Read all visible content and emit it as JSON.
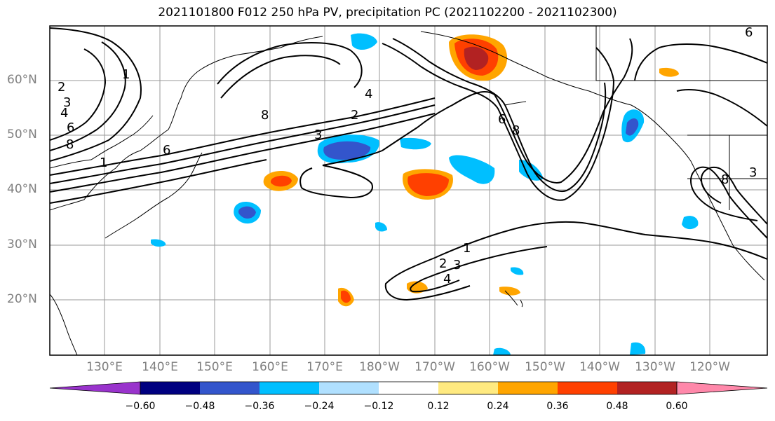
{
  "title": "2021101800 F012 250 hPa PV, precipitation PC (2021102200 - 2021102300)",
  "lat_labels": [
    "60°N",
    "50°N",
    "40°N",
    "30°N",
    "20°N"
  ],
  "lon_labels": [
    "130°E",
    "140°E",
    "150°E",
    "160°E",
    "170°E",
    "180°W",
    "170°W",
    "160°W",
    "150°W",
    "140°W",
    "130°W",
    "120°W"
  ],
  "colorbar": {
    "colors": [
      "#9933cc",
      "#000080",
      "#3355cc",
      "#00bfff",
      "#b0e0ff",
      "#ffffff",
      "#ffea80",
      "#ffa500",
      "#ff4000",
      "#b22222",
      "#ff88aa"
    ],
    "tick_labels": [
      "−0.60",
      "−0.48",
      "−0.36",
      "−0.24",
      "−0.12",
      "0.12",
      "0.24",
      "0.36",
      "0.48",
      "0.60"
    ]
  },
  "contour_labels": [
    "1",
    "2",
    "3",
    "4",
    "6",
    "8",
    "1",
    "2",
    "3",
    "4",
    "6",
    "8",
    "1",
    "2",
    "3",
    "4",
    "8",
    "6",
    "3",
    "8",
    "6"
  ]
}
